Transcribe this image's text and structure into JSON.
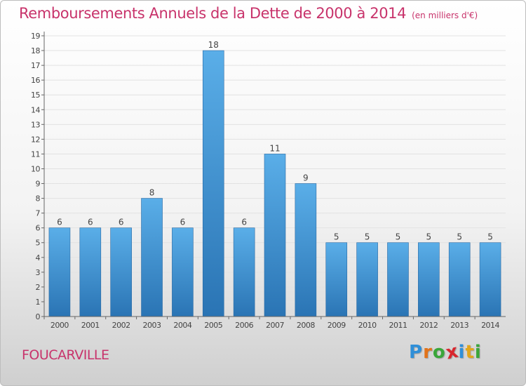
{
  "header": {
    "title": "Remboursements Annuels de la Dette de 2000 à 2014",
    "unit": "(en milliers d'€)"
  },
  "footer": {
    "town": "FOUCARVILLE",
    "logo_letters": [
      {
        "char": "P",
        "color": "#2f8fd8"
      },
      {
        "char": "r",
        "color": "#e2731a"
      },
      {
        "char": "o",
        "color": "#3aa63a"
      },
      {
        "char": "x",
        "color": "#d8262e"
      },
      {
        "char": "i",
        "color": "#2f8fd8"
      },
      {
        "char": "t",
        "color": "#e2a61a"
      },
      {
        "char": "i",
        "color": "#3aa63a"
      }
    ]
  },
  "colors": {
    "title": "#c8336b",
    "bar_top": "#5aaee8",
    "bar_bottom": "#2a74b4",
    "grid": "#e2e2e2",
    "axis": "#666666",
    "tick_text": "#444444"
  },
  "chart_data": {
    "type": "bar",
    "title": "Remboursements Annuels de la Dette de 2000 à 2014",
    "subtitle": "(en milliers d'€)",
    "categories": [
      "2000",
      "2001",
      "2002",
      "2003",
      "2004",
      "2005",
      "2006",
      "2007",
      "2008",
      "2009",
      "2010",
      "2011",
      "2012",
      "2013",
      "2014"
    ],
    "values": [
      6,
      6,
      6,
      8,
      6,
      18,
      6,
      11,
      9,
      5,
      5,
      5,
      5,
      5,
      5
    ],
    "ylim": [
      0,
      19
    ],
    "yticks": [
      0,
      1,
      2,
      3,
      4,
      5,
      6,
      7,
      8,
      9,
      10,
      11,
      12,
      13,
      14,
      15,
      16,
      17,
      18,
      19
    ],
    "grid": true,
    "data_labels": true
  }
}
